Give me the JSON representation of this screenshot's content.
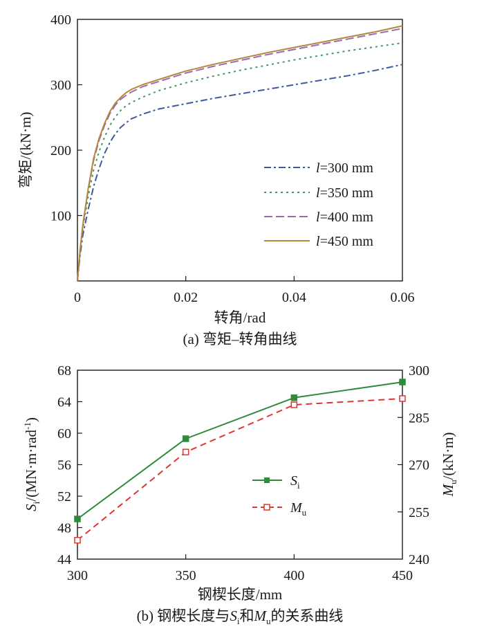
{
  "chart_data": [
    {
      "type": "line",
      "caption": "(a) 弯矩–转角曲线",
      "xlabel": "转角/rad",
      "ylabel": "弯矩/(kN·m)",
      "xlim": [
        0,
        0.06
      ],
      "ylim": [
        0,
        400
      ],
      "xticks": [
        0,
        0.02,
        0.04,
        0.06
      ],
      "xtick_labels": [
        "0",
        "0.02",
        "0.04",
        "0.06"
      ],
      "yticks": [
        100,
        200,
        300,
        400
      ],
      "ytick_labels": [
        "100",
        "200",
        "300",
        "400"
      ],
      "legend_position": "right-middle",
      "grid": false,
      "series": [
        {
          "name": "l=300 mm",
          "legend_var": "l",
          "legend_rest": "=300 mm",
          "color": "#3d5a9e",
          "dash": "10,4,3,4",
          "x": [
            0,
            0.0005,
            0.001,
            0.002,
            0.003,
            0.004,
            0.005,
            0.006,
            0.007,
            0.008,
            0.009,
            0.01,
            0.012,
            0.015,
            0.02,
            0.025,
            0.03,
            0.035,
            0.04,
            0.045,
            0.05,
            0.055,
            0.06
          ],
          "y": [
            0,
            40,
            70,
            110,
            145,
            172,
            195,
            212,
            225,
            235,
            242,
            248,
            255,
            263,
            271,
            279,
            286,
            293,
            300,
            307,
            314,
            322,
            331
          ]
        },
        {
          "name": "l=350 mm",
          "legend_var": "l",
          "legend_rest": "=350 mm",
          "color": "#3e9a5c",
          "dash": "3,5",
          "x": [
            0,
            0.0005,
            0.001,
            0.002,
            0.003,
            0.004,
            0.005,
            0.006,
            0.007,
            0.008,
            0.009,
            0.01,
            0.012,
            0.015,
            0.02,
            0.025,
            0.03,
            0.035,
            0.04,
            0.045,
            0.05,
            0.055,
            0.06
          ],
          "y": [
            0,
            45,
            80,
            130,
            170,
            198,
            220,
            238,
            251,
            261,
            268,
            273,
            281,
            291,
            303,
            313,
            322,
            330,
            338,
            345,
            352,
            358,
            364
          ]
        },
        {
          "name": "l=400 mm",
          "legend_var": "l",
          "legend_rest": "=400 mm",
          "color": "#9a6ab8",
          "dash": "12,5",
          "x": [
            0,
            0.0005,
            0.001,
            0.002,
            0.003,
            0.004,
            0.005,
            0.006,
            0.007,
            0.008,
            0.009,
            0.01,
            0.012,
            0.015,
            0.02,
            0.025,
            0.03,
            0.035,
            0.04,
            0.045,
            0.05,
            0.055,
            0.06
          ],
          "y": [
            0,
            48,
            85,
            140,
            185,
            215,
            238,
            256,
            269,
            278,
            284,
            289,
            297,
            305,
            318,
            328,
            337,
            346,
            354,
            362,
            370,
            378,
            386
          ]
        },
        {
          "name": "l=450 mm",
          "legend_var": "l",
          "legend_rest": "=450 mm",
          "color": "#b5873a",
          "dash": "",
          "x": [
            0,
            0.0005,
            0.001,
            0.002,
            0.003,
            0.004,
            0.005,
            0.006,
            0.007,
            0.008,
            0.009,
            0.01,
            0.012,
            0.015,
            0.02,
            0.025,
            0.03,
            0.035,
            0.04,
            0.045,
            0.05,
            0.055,
            0.06
          ],
          "y": [
            0,
            48,
            86,
            142,
            188,
            218,
            241,
            259,
            272,
            281,
            288,
            293,
            300,
            308,
            321,
            331,
            340,
            349,
            357,
            365,
            373,
            381,
            390
          ]
        }
      ]
    },
    {
      "type": "line",
      "caption_pre": "(b) 钢楔长度与",
      "caption_mid": "和",
      "caption_post": "的关系曲线",
      "xlabel": "钢楔长度/mm",
      "ylabel_left_var": "S",
      "ylabel_left_sub": "i",
      "ylabel_left_rest": "/(MN·m·rad",
      "ylabel_left_sup": "-1",
      "ylabel_left_end": ")",
      "ylabel_right_var": "M",
      "ylabel_right_sub": "u",
      "ylabel_right_rest": "/(kN·m)",
      "x": [
        300,
        350,
        400,
        450
      ],
      "xlim": [
        300,
        450
      ],
      "xtick_labels": [
        "300",
        "350",
        "400",
        "450"
      ],
      "ylim_left": [
        44,
        68
      ],
      "ytick_labels_left": [
        "44",
        "48",
        "52",
        "56",
        "60",
        "64",
        "68"
      ],
      "ylim_right": [
        240,
        300
      ],
      "ytick_labels_right": [
        "240",
        "255",
        "270",
        "285",
        "300"
      ],
      "legend_position": "center",
      "grid": false,
      "series": [
        {
          "name": "Si",
          "var": "S",
          "sub": "i",
          "axis": "left",
          "color": "#2e8b3c",
          "marker": "filled-square",
          "dash": "",
          "values": [
            49.1,
            59.3,
            64.5,
            66.5
          ]
        },
        {
          "name": "Mu",
          "var": "M",
          "sub": "u",
          "axis": "right",
          "color": "#e0342e",
          "marker": "open-square",
          "dash": "9,6",
          "values": [
            246,
            274,
            289,
            291
          ]
        }
      ]
    }
  ]
}
